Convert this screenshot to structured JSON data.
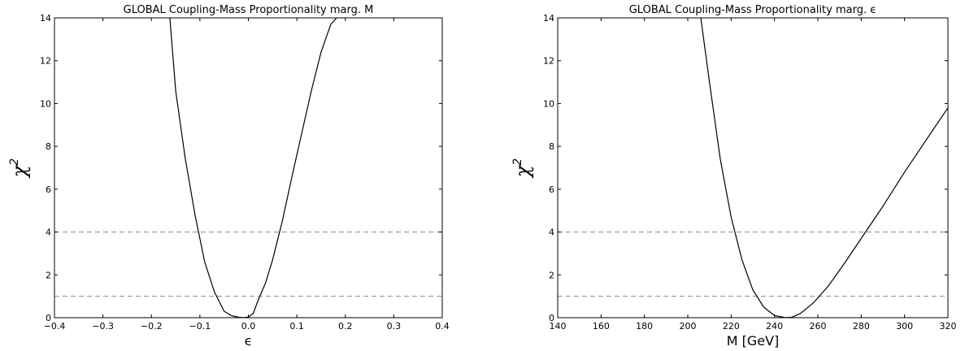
{
  "chart_data": [
    {
      "type": "line",
      "title": "GLOBAL Coupling-Mass Proportionality marg. M",
      "xlabel": "ϵ",
      "ylabel": "χ",
      "ylabel_superscript": "2",
      "xlim": [
        -0.4,
        0.4
      ],
      "ylim": [
        0,
        14
      ],
      "xticks": [
        "−0.4",
        "−0.3",
        "−0.2",
        "−0.1",
        "0.0",
        "0.1",
        "0.2",
        "0.3",
        "0.4"
      ],
      "yticks": [
        "0",
        "2",
        "4",
        "6",
        "8",
        "10",
        "12",
        "14"
      ],
      "grid": false,
      "hlines": [
        {
          "y": 4,
          "style": "dashed"
        },
        {
          "y": 1,
          "style": "dashed"
        }
      ],
      "series": [
        {
          "color": "#000000",
          "x": [
            -0.162,
            -0.15,
            -0.13,
            -0.11,
            -0.09,
            -0.07,
            -0.05,
            -0.035,
            -0.02,
            -0.01,
            0.0,
            0.01,
            0.02,
            0.035,
            0.05,
            0.07,
            0.09,
            0.11,
            0.13,
            0.15,
            0.17,
            0.182
          ],
          "y": [
            14.0,
            10.6,
            7.4,
            4.8,
            2.6,
            1.2,
            0.3,
            0.1,
            0.02,
            0.0,
            0.03,
            0.2,
            0.8,
            1.6,
            2.7,
            4.5,
            6.6,
            8.6,
            10.6,
            12.4,
            13.7,
            14.0
          ]
        }
      ]
    },
    {
      "type": "line",
      "title": "GLOBAL Coupling-Mass Proportionality marg. ϵ",
      "xlabel": "M [GeV]",
      "ylabel": "χ",
      "ylabel_superscript": "2",
      "xlim": [
        140,
        320
      ],
      "ylim": [
        0,
        14
      ],
      "xticks": [
        "140",
        "160",
        "180",
        "200",
        "220",
        "240",
        "260",
        "280",
        "300",
        "320"
      ],
      "yticks": [
        "0",
        "2",
        "4",
        "6",
        "8",
        "10",
        "12",
        "14"
      ],
      "grid": false,
      "hlines": [
        {
          "y": 4,
          "style": "dashed"
        },
        {
          "y": 1,
          "style": "dashed"
        }
      ],
      "series": [
        {
          "color": "#000000",
          "x": [
            206,
            210,
            215,
            220,
            225,
            230,
            235,
            240,
            245,
            248,
            252,
            258,
            265,
            272,
            280,
            290,
            300,
            310,
            320
          ],
          "y": [
            14.0,
            11.0,
            7.4,
            4.7,
            2.7,
            1.3,
            0.5,
            0.1,
            0.0,
            0.02,
            0.2,
            0.7,
            1.5,
            2.5,
            3.7,
            5.2,
            6.8,
            8.3,
            9.8
          ]
        }
      ]
    }
  ]
}
